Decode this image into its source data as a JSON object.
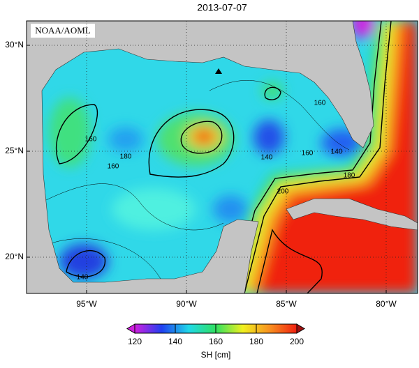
{
  "title": "2013-07-07",
  "credit": "NOAA/AOML",
  "map": {
    "lon_ticks": [
      {
        "value": -95,
        "label": "95°W"
      },
      {
        "value": -90,
        "label": "90°W"
      },
      {
        "value": -85,
        "label": "85°W"
      },
      {
        "value": -80,
        "label": "80°W"
      }
    ],
    "lat_ticks": [
      {
        "value": 30,
        "label": "30°N"
      },
      {
        "value": 25,
        "label": "25°N"
      },
      {
        "value": 20,
        "label": "20°N"
      }
    ],
    "contour_labels": [
      160,
      160,
      180,
      140,
      140,
      160,
      180,
      200,
      140,
      160
    ]
  },
  "colorbar": {
    "label": "SH [cm]",
    "lim": [
      120,
      200
    ],
    "ticks": [
      120,
      140,
      160,
      180,
      200
    ],
    "colors": [
      "#d020e0",
      "#2040f0",
      "#20d8e8",
      "#30e060",
      "#f0f020",
      "#f89020",
      "#f02010"
    ]
  }
}
